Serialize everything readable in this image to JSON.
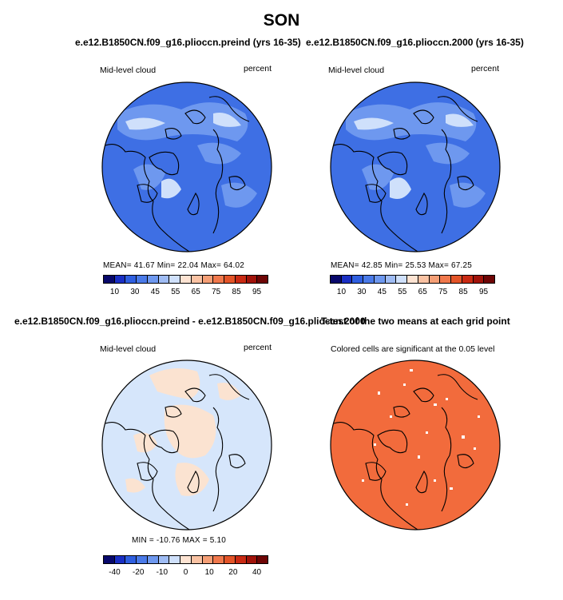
{
  "title": "SON",
  "panels": [
    {
      "case_title": "e.e12.B1850CN.f09_g16.plioccn.preind (yrs 16-35)",
      "field_label": "Mid-level cloud",
      "units_label": "percent",
      "stats": "MEAN=  41.67   Min=  22.04   Max=  64.02"
    },
    {
      "case_title": "e.e12.B1850CN.f09_g16.plioccn.2000 (yrs 16-35)",
      "field_label": "Mid-level cloud",
      "units_label": "percent",
      "stats": "MEAN=  42.85   Min=  25.53   Max=  67.25"
    },
    {
      "case_title": "e.e12.B1850CN.f09_g16.plioccn.preind - e.e12.B1850CN.f09_g16.plioccn.2000",
      "field_label": "Mid-level cloud",
      "units_label": "percent",
      "stats": "MIN = -10.76 MAX =    5.10"
    },
    {
      "case_title": "T-test of the two means at each grid point",
      "field_label": "Colored cells are significant at the 0.05 level"
    }
  ],
  "colorbar_abs": {
    "colors": [
      "#08086b",
      "#1a2fc4",
      "#2f5fe0",
      "#4a7ae8",
      "#6e98ef",
      "#9fbcf4",
      "#cfe0fb",
      "#fde3d2",
      "#f9c2a3",
      "#f59f76",
      "#f0784c",
      "#e35428",
      "#c92a13",
      "#a1130a",
      "#6e0505"
    ],
    "labels": [
      "10",
      "30",
      "45",
      "55",
      "65",
      "75",
      "85",
      "95"
    ]
  },
  "colorbar_diff": {
    "colors": [
      "#08086b",
      "#1a2fc4",
      "#2f5fe0",
      "#4a7ae8",
      "#6e98ef",
      "#9fbcf4",
      "#cfe0fb",
      "#fde3d2",
      "#f9c2a3",
      "#f59f76",
      "#f0784c",
      "#e35428",
      "#c92a13",
      "#a1130a",
      "#6e0505"
    ],
    "labels": [
      "-40",
      "-20",
      "-10",
      "0",
      "10",
      "20",
      "40"
    ]
  },
  "map_colors": {
    "abs_fill": "#3e6fe4",
    "abs_light": "#6e98ef",
    "abs_pale": "#cfe0fb",
    "diff_fill": "#d6e6fb",
    "diff_patch": "#fbe3d1",
    "ttest_fill": "#f26b3c"
  }
}
